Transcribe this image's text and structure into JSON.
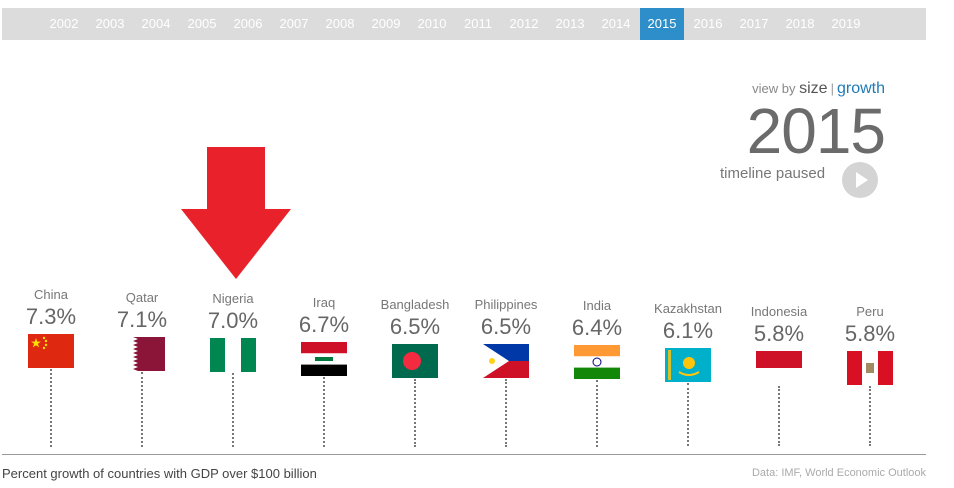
{
  "timeline": {
    "years": [
      "2002",
      "2003",
      "2004",
      "2005",
      "2006",
      "2007",
      "2008",
      "2009",
      "2010",
      "2011",
      "2012",
      "2013",
      "2014",
      "2015",
      "2016",
      "2017",
      "2018",
      "2019"
    ],
    "selected": "2015"
  },
  "view_by": {
    "label": "view by",
    "size": "size",
    "separator": "|",
    "growth": "growth",
    "active": "growth"
  },
  "year_display": "2015",
  "status": "timeline paused",
  "countries": [
    {
      "name": "China",
      "growth": "7.3%",
      "flag": "china-flag"
    },
    {
      "name": "Qatar",
      "growth": "7.1%",
      "flag": "qatar-flag"
    },
    {
      "name": "Nigeria",
      "growth": "7.0%",
      "flag": "nigeria-flag"
    },
    {
      "name": "Iraq",
      "growth": "6.7%",
      "flag": "iraq-flag"
    },
    {
      "name": "Bangladesh",
      "growth": "6.5%",
      "flag": "bangladesh-flag"
    },
    {
      "name": "Philippines",
      "growth": "6.5%",
      "flag": "philippines-flag"
    },
    {
      "name": "India",
      "growth": "6.4%",
      "flag": "india-flag"
    },
    {
      "name": "Kazakhstan",
      "growth": "6.1%",
      "flag": "kazakhstan-flag"
    },
    {
      "name": "Indonesia",
      "growth": "5.8%",
      "flag": "indonesia-flag"
    },
    {
      "name": "Peru",
      "growth": "5.8%",
      "flag": "peru-flag"
    }
  ],
  "annotation": {
    "icon": "down-arrow-icon",
    "color": "#e8212b"
  },
  "colors": {
    "accent": "#2e8ec9",
    "timeline_bg": "#dcdcdc"
  },
  "caption": "Percent growth of countries with GDP over $100 billion",
  "source": "Data: IMF, World Economic Outlook"
}
